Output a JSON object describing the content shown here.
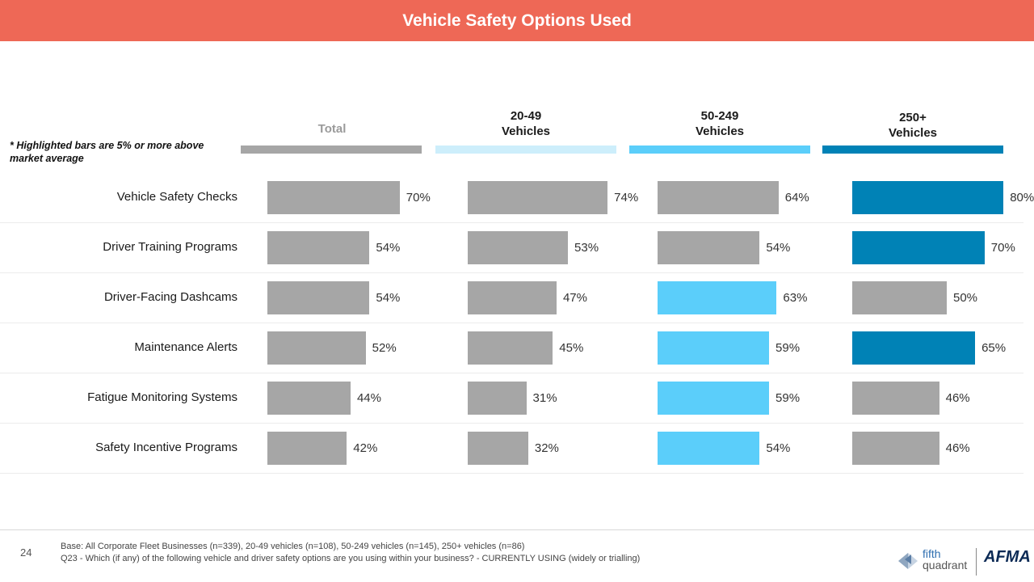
{
  "title": "Vehicle Safety Options Used",
  "note": "* Highlighted bars are 5% or more above market average",
  "columns": {
    "total": "Total",
    "small_line1": "20-49",
    "small_line2": "Vehicles",
    "medium_line1": "50-249",
    "medium_line2": "Vehicles",
    "large_line1": "250+",
    "large_line2": "Vehicles"
  },
  "colors": {
    "header": "#ee6856",
    "default_bar": "#a6a6a6",
    "strip_total": "#a6a6a6",
    "strip_small": "#cdeefb",
    "strip_medium": "#5bcefa",
    "strip_large": "#0082b6",
    "highlight_medium": "#5bcefa",
    "highlight_large": "#0082b6"
  },
  "chart_data": {
    "type": "bar",
    "title": "Vehicle Safety Options Used",
    "orientation": "horizontal",
    "categories": [
      "Vehicle Safety Checks",
      "Driver Training Programs",
      "Driver-Facing Dashcams",
      "Maintenance Alerts",
      "Fatigue Monitoring Systems",
      "Safety Incentive Programs"
    ],
    "series": [
      {
        "name": "Total",
        "values": [
          70,
          54,
          54,
          52,
          44,
          42
        ],
        "highlighted": [
          false,
          false,
          false,
          false,
          false,
          false
        ]
      },
      {
        "name": "20-49 Vehicles",
        "values": [
          74,
          53,
          47,
          45,
          31,
          32
        ],
        "highlighted": [
          false,
          false,
          false,
          false,
          false,
          false
        ]
      },
      {
        "name": "50-249 Vehicles",
        "values": [
          64,
          54,
          63,
          59,
          59,
          54
        ],
        "highlighted": [
          false,
          false,
          true,
          true,
          true,
          true
        ]
      },
      {
        "name": "250+ Vehicles",
        "values": [
          80,
          70,
          50,
          65,
          46,
          46
        ],
        "highlighted": [
          true,
          true,
          false,
          true,
          false,
          false
        ]
      }
    ],
    "unit": "%",
    "xlim": [
      0,
      100
    ]
  },
  "footer": {
    "page": "24",
    "base": "Base: All Corporate Fleet Businesses (n=339), 20-49 vehicles (n=108), 50-249 vehicles (n=145), 250+ vehicles (n=86)",
    "question": "Q23 - Which (if any) of the following vehicle and driver safety options are you using within your business? - CURRENTLY USING (widely or trialling)",
    "logo_fifth": "fifth",
    "logo_quadrant": "quadrant",
    "logo_afma": "AFMA"
  }
}
